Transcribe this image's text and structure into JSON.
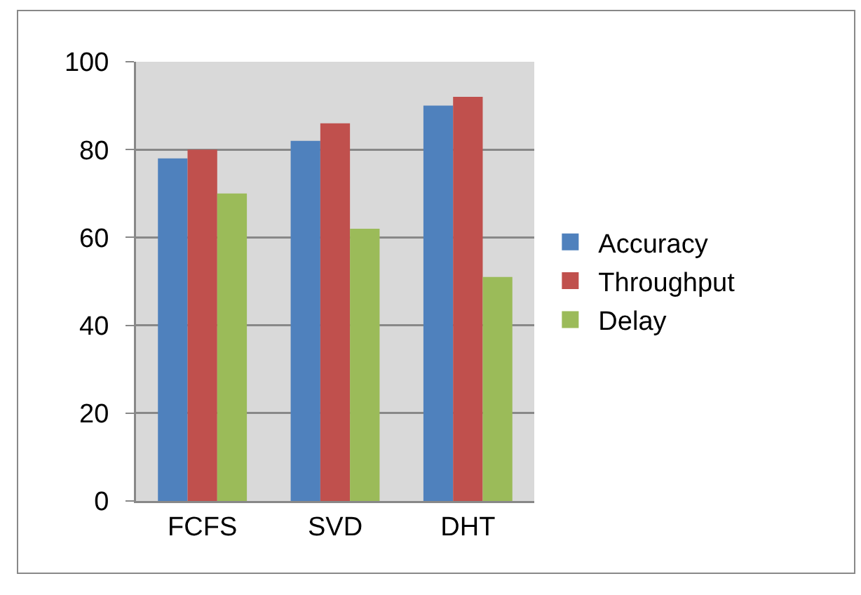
{
  "chart_data": {
    "type": "bar",
    "categories": [
      "FCFS",
      "SVD",
      "DHT"
    ],
    "series": [
      {
        "name": "Accuracy",
        "color": "#4f81bd",
        "values": [
          78,
          82,
          90
        ]
      },
      {
        "name": "Throughput",
        "color": "#c0504d",
        "values": [
          80,
          86,
          92
        ]
      },
      {
        "name": "Delay",
        "color": "#9bbb59",
        "values": [
          70,
          62,
          51
        ]
      }
    ],
    "ylim": [
      0,
      100
    ],
    "yticks": [
      0,
      20,
      40,
      60,
      80,
      100
    ],
    "grid": "y",
    "legend": "right"
  }
}
